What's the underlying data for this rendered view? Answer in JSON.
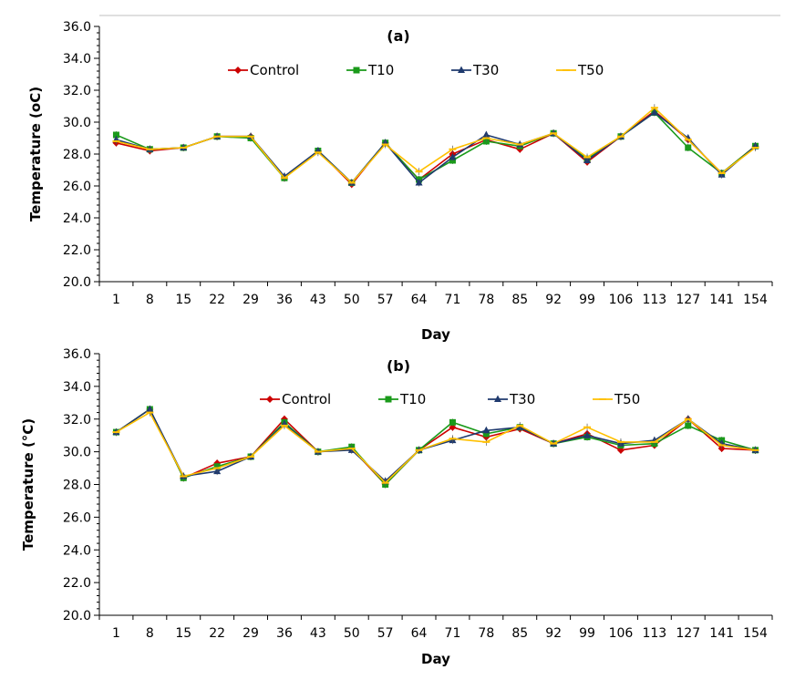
{
  "chart_data": [
    {
      "type": "line",
      "title": "(a)",
      "xlabel": "Day",
      "ylabel": "Temperature (oC)",
      "ylim": [
        20,
        36
      ],
      "yticks": [
        "20.0",
        "22.0",
        "24.0",
        "26.0",
        "28.0",
        "30.0",
        "32.0",
        "34.0",
        "36.0"
      ],
      "categories": [
        "1",
        "8",
        "15",
        "22",
        "29",
        "36",
        "43",
        "50",
        "57",
        "64",
        "71",
        "78",
        "85",
        "92",
        "99",
        "106",
        "113",
        "127",
        "141",
        "154"
      ],
      "legend_position": "top-center",
      "series": [
        {
          "name": "Control",
          "color": "#cc0000",
          "marker": "diamond",
          "values": [
            28.7,
            28.2,
            28.4,
            29.1,
            29.1,
            26.5,
            28.2,
            26.1,
            28.7,
            26.4,
            28.0,
            28.9,
            28.3,
            29.3,
            27.5,
            29.1,
            30.7,
            28.9,
            26.8,
            28.5
          ]
        },
        {
          "name": "T10",
          "color": "#1a9a1a",
          "marker": "square",
          "values": [
            29.2,
            28.3,
            28.4,
            29.1,
            29.0,
            26.5,
            28.2,
            26.2,
            28.7,
            26.4,
            27.6,
            28.8,
            28.5,
            29.3,
            27.7,
            29.1,
            30.6,
            28.4,
            26.8,
            28.5
          ]
        },
        {
          "name": "T30",
          "color": "#1f3a6e",
          "marker": "triangle",
          "values": [
            28.9,
            28.3,
            28.4,
            29.1,
            29.1,
            26.6,
            28.2,
            26.2,
            28.7,
            26.2,
            27.8,
            29.2,
            28.6,
            29.3,
            27.6,
            29.1,
            30.6,
            29.0,
            26.7,
            28.5
          ]
        },
        {
          "name": "T50",
          "color": "#ffc000",
          "marker": "dash",
          "values": [
            28.8,
            28.3,
            28.4,
            29.1,
            29.1,
            26.5,
            28.1,
            26.2,
            28.6,
            26.9,
            28.3,
            29.0,
            28.6,
            29.3,
            27.8,
            29.1,
            30.9,
            28.9,
            26.8,
            28.4
          ]
        }
      ]
    },
    {
      "type": "line",
      "title": "(b)",
      "xlabel": "Day",
      "ylabel": "Temperature (°C)",
      "ylim": [
        20,
        36
      ],
      "yticks": [
        "20.0",
        "22.0",
        "24.0",
        "26.0",
        "28.0",
        "30.0",
        "32.0",
        "34.0",
        "36.0"
      ],
      "categories": [
        "1",
        "8",
        "15",
        "22",
        "29",
        "36",
        "43",
        "50",
        "57",
        "64",
        "71",
        "78",
        "85",
        "92",
        "99",
        "106",
        "113",
        "127",
        "141",
        "154"
      ],
      "legend_position": "top-center",
      "series": [
        {
          "name": "Control",
          "color": "#cc0000",
          "marker": "diamond",
          "values": [
            31.2,
            32.6,
            28.4,
            29.3,
            29.7,
            32.0,
            30.0,
            30.2,
            28.0,
            30.1,
            31.5,
            30.9,
            31.4,
            30.5,
            31.1,
            30.1,
            30.4,
            32.0,
            30.2,
            30.1
          ]
        },
        {
          "name": "T10",
          "color": "#1a9a1a",
          "marker": "square",
          "values": [
            31.2,
            32.6,
            28.4,
            29.1,
            29.7,
            31.8,
            30.0,
            30.3,
            28.0,
            30.1,
            31.8,
            31.1,
            31.5,
            30.5,
            30.9,
            30.4,
            30.5,
            31.6,
            30.7,
            30.1
          ]
        },
        {
          "name": "T30",
          "color": "#1f3a6e",
          "marker": "triangle",
          "values": [
            31.2,
            32.6,
            28.5,
            28.8,
            29.7,
            31.7,
            30.0,
            30.1,
            28.2,
            30.1,
            30.7,
            31.3,
            31.5,
            30.5,
            31.0,
            30.5,
            30.7,
            32.0,
            30.5,
            30.1
          ]
        },
        {
          "name": "T50",
          "color": "#ffc000",
          "marker": "dash",
          "values": [
            31.2,
            32.4,
            28.5,
            29.0,
            29.7,
            31.6,
            30.0,
            30.2,
            28.1,
            30.1,
            30.8,
            30.6,
            31.6,
            30.5,
            31.5,
            30.6,
            30.6,
            32.0,
            30.4,
            30.1
          ]
        }
      ]
    }
  ]
}
